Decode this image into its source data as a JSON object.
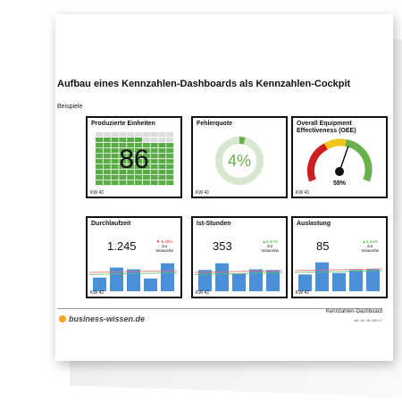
{
  "header": {
    "title": "Aufbau eines Kennzahlen-Dashboards als Kennzahlen-Cockpit",
    "subtitle": "Beispiele"
  },
  "cards": {
    "produced": {
      "title": "Produzierte Einheiten",
      "value": "86",
      "week": "KW 42",
      "percent": 86
    },
    "error": {
      "title": "Fehlerquote",
      "value": "4%",
      "week": "KW 42",
      "percent": 4
    },
    "oee": {
      "title": "Overall Equipment Effectiveness (OEE)",
      "value": "58%",
      "week": "KW 42",
      "percent": 58
    },
    "cycle": {
      "title": "Durchlaufzeit",
      "value": "1.245",
      "delta": "▼-8,26%",
      "delta_note1": "zur",
      "delta_note2": "Vorwoche",
      "week": "KW 42",
      "delta_color": "#e02020"
    },
    "hours": {
      "title": "Ist-Stunden",
      "value": "353",
      "delta": "▲8,97%",
      "delta_note1": "zur",
      "delta_note2": "Vorwoche",
      "week": "KW 42",
      "delta_color": "#3aaa35"
    },
    "load": {
      "title": "Auslastung",
      "value": "85",
      "delta": "▲5,43%",
      "delta_note1": "zur",
      "delta_note2": "Vorwoche",
      "week": "KW 42",
      "delta_color": "#3aaa35"
    }
  },
  "footer": {
    "brand": "business-wissen.de",
    "document": "Kennzahlen-Dashboard",
    "article": "Art.-Nr. 06 195 17"
  },
  "colors": {
    "grid_green": "#5aac44",
    "ring_light": "#d8e8d0",
    "ring_green": "#6ab04c",
    "bar_blue": "#4a90d9",
    "gauge_red": "#cc1f1f",
    "gauge_yellow": "#f0c419",
    "gauge_green": "#6ab04c",
    "brand_orange": "#f5a623"
  }
}
